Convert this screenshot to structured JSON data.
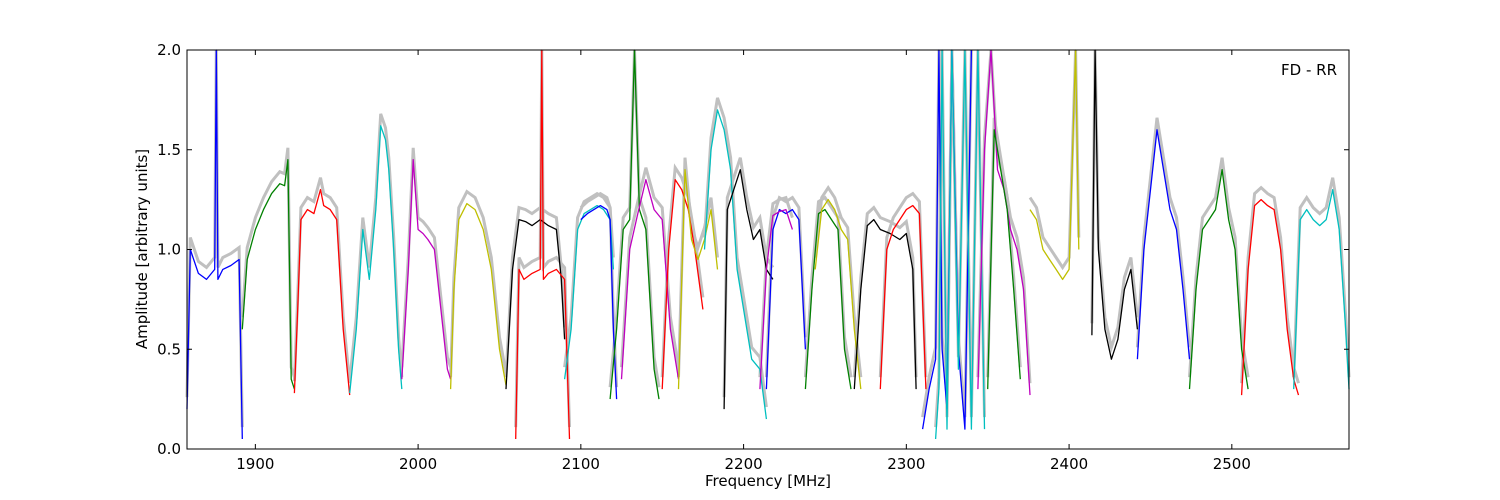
{
  "chart_data": {
    "type": "line",
    "annotation": "FD - RR",
    "xlabel": "Frequency [MHz]",
    "ylabel": "Amplitude [arbitrary units]",
    "xlim": [
      1858,
      2572
    ],
    "ylim": [
      0.0,
      2.0
    ],
    "xticks": [
      1900,
      2000,
      2100,
      2200,
      2300,
      2400,
      2500
    ],
    "yticks": [
      0.0,
      0.5,
      1.0,
      1.5,
      2.0
    ],
    "xtick_labels": [
      "1900",
      "2000",
      "2100",
      "2200",
      "2300",
      "2400",
      "2500"
    ],
    "ytick_labels": [
      "0.0",
      "0.5",
      "1.0",
      "1.5",
      "2.0"
    ],
    "grid": false,
    "background_color": "#c0c0c0",
    "series": [
      {
        "color": "#0000ff",
        "x": [
          1858,
          1860,
          1865,
          1870,
          1875,
          1876,
          1877,
          1880,
          1885,
          1890,
          1892
        ],
        "y": [
          0.2,
          1.0,
          0.88,
          0.85,
          0.9,
          2.0,
          0.85,
          0.9,
          0.92,
          0.95,
          0.05
        ]
      },
      {
        "color": "#008000",
        "x": [
          1892,
          1895,
          1900,
          1905,
          1910,
          1915,
          1918,
          1920,
          1922,
          1924
        ],
        "y": [
          0.6,
          0.95,
          1.1,
          1.2,
          1.28,
          1.33,
          1.32,
          1.45,
          0.35,
          0.3
        ]
      },
      {
        "color": "#ff0000",
        "x": [
          1924,
          1926,
          1928,
          1932,
          1936,
          1940,
          1942,
          1946,
          1950,
          1954,
          1958
        ],
        "y": [
          0.28,
          0.7,
          1.15,
          1.2,
          1.18,
          1.3,
          1.22,
          1.2,
          1.15,
          0.6,
          0.27
        ]
      },
      {
        "color": "#00bfbf",
        "x": [
          1958,
          1962,
          1966,
          1970,
          1974,
          1977,
          1980,
          1982,
          1985,
          1988,
          1990
        ],
        "y": [
          0.28,
          0.6,
          1.1,
          0.85,
          1.2,
          1.62,
          1.55,
          1.4,
          1.0,
          0.5,
          0.3
        ]
      },
      {
        "color": "#bf00bf",
        "x": [
          1990,
          1994,
          1997,
          2000,
          2003,
          2006,
          2010,
          2014,
          2018,
          2020
        ],
        "y": [
          0.35,
          0.9,
          1.45,
          1.1,
          1.08,
          1.05,
          1.0,
          0.7,
          0.4,
          0.35
        ]
      },
      {
        "color": "#bfbf00",
        "x": [
          2020,
          2022,
          2025,
          2030,
          2035,
          2040,
          2045,
          2050,
          2054
        ],
        "y": [
          0.3,
          0.8,
          1.15,
          1.23,
          1.2,
          1.1,
          0.9,
          0.5,
          0.32
        ]
      },
      {
        "color": "#000000",
        "x": [
          2054,
          2058,
          2062,
          2066,
          2070,
          2075,
          2080,
          2085,
          2088,
          2090
        ],
        "y": [
          0.3,
          0.9,
          1.15,
          1.14,
          1.12,
          1.15,
          1.12,
          1.1,
          0.85,
          0.55
        ]
      },
      {
        "color": "#ff0000",
        "x": [
          2060,
          2062,
          2065,
          2070,
          2075,
          2076,
          2077,
          2080,
          2085,
          2090,
          2093
        ],
        "y": [
          0.05,
          0.9,
          0.85,
          0.88,
          0.9,
          2.0,
          0.85,
          0.88,
          0.9,
          0.85,
          0.05
        ]
      },
      {
        "color": "#00bfbf",
        "x": [
          2090,
          2094,
          2098,
          2102,
          2106,
          2110,
          2114,
          2118,
          2120
        ],
        "y": [
          0.35,
          0.6,
          1.1,
          1.18,
          1.2,
          1.22,
          1.2,
          1.15,
          0.9
        ]
      },
      {
        "color": "#0000ff",
        "x": [
          2100,
          2104,
          2108,
          2112,
          2116,
          2118,
          2120,
          2122
        ],
        "y": [
          1.15,
          1.18,
          1.2,
          1.22,
          1.2,
          1.15,
          0.6,
          0.25
        ]
      },
      {
        "color": "#008000",
        "x": [
          2118,
          2122,
          2126,
          2130,
          2133,
          2136,
          2140,
          2145,
          2148
        ],
        "y": [
          0.25,
          0.6,
          1.1,
          1.15,
          2.0,
          1.2,
          1.1,
          0.4,
          0.25
        ]
      },
      {
        "color": "#bf00bf",
        "x": [
          2125,
          2130,
          2135,
          2140,
          2145,
          2150,
          2155,
          2160
        ],
        "y": [
          0.35,
          1.0,
          1.18,
          1.35,
          1.2,
          1.15,
          0.6,
          0.35
        ]
      },
      {
        "color": "#ff0000",
        "x": [
          2150,
          2154,
          2158,
          2162,
          2166,
          2170,
          2175
        ],
        "y": [
          0.3,
          1.0,
          1.35,
          1.3,
          1.2,
          1.0,
          0.7
        ]
      },
      {
        "color": "#bfbf00",
        "x": [
          2160,
          2164,
          2168,
          2172,
          2176,
          2180,
          2184
        ],
        "y": [
          0.3,
          1.4,
          1.05,
          0.95,
          1.05,
          1.2,
          0.9
        ]
      },
      {
        "color": "#00bfbf",
        "x": [
          2176,
          2180,
          2184,
          2188,
          2192,
          2196,
          2200,
          2205,
          2210,
          2214
        ],
        "y": [
          1.0,
          1.5,
          1.7,
          1.6,
          1.4,
          0.9,
          0.7,
          0.45,
          0.4,
          0.15
        ]
      },
      {
        "color": "#000000",
        "x": [
          2188,
          2190,
          2194,
          2198,
          2202,
          2206,
          2210,
          2214,
          2218
        ],
        "y": [
          0.2,
          1.2,
          1.3,
          1.4,
          1.2,
          1.05,
          1.1,
          0.9,
          0.85
        ]
      },
      {
        "color": "#0000ff",
        "x": [
          2214,
          2218,
          2222,
          2226,
          2230,
          2234,
          2238
        ],
        "y": [
          0.3,
          1.1,
          1.2,
          1.18,
          1.2,
          1.15,
          0.5
        ]
      },
      {
        "color": "#bf00bf",
        "x": [
          2210,
          2214,
          2218,
          2222,
          2226,
          2230
        ],
        "y": [
          0.3,
          0.9,
          1.17,
          1.19,
          1.2,
          1.1
        ]
      },
      {
        "color": "#008000",
        "x": [
          2238,
          2242,
          2246,
          2250,
          2254,
          2258,
          2262,
          2266
        ],
        "y": [
          0.3,
          0.8,
          1.18,
          1.2,
          1.15,
          1.1,
          0.5,
          0.3
        ]
      },
      {
        "color": "#bfbf00",
        "x": [
          2244,
          2248,
          2252,
          2256,
          2260,
          2264,
          2268,
          2272
        ],
        "y": [
          0.9,
          1.2,
          1.25,
          1.2,
          1.1,
          1.05,
          0.6,
          0.3
        ]
      },
      {
        "color": "#000000",
        "x": [
          2268,
          2272,
          2276,
          2280,
          2284,
          2290,
          2296,
          2300,
          2304,
          2306
        ],
        "y": [
          0.3,
          0.8,
          1.12,
          1.15,
          1.1,
          1.08,
          1.05,
          1.08,
          0.9,
          0.3
        ]
      },
      {
        "color": "#ff0000",
        "x": [
          2284,
          2288,
          2292,
          2296,
          2300,
          2304,
          2308,
          2312
        ],
        "y": [
          0.3,
          1.0,
          1.1,
          1.15,
          1.2,
          1.22,
          1.18,
          0.3
        ]
      },
      {
        "color": "#0000ff",
        "x": [
          2310,
          2314,
          2318,
          2320,
          2322,
          2325,
          2328,
          2332,
          2336,
          2340
        ],
        "y": [
          0.1,
          0.3,
          0.45,
          2.0,
          0.5,
          0.2,
          2.0,
          0.5,
          0.1,
          2.0
        ]
      },
      {
        "color": "#00bfbf",
        "x": [
          2318,
          2320,
          2322,
          2325,
          2328,
          2332,
          2336,
          2340,
          2344,
          2348
        ],
        "y": [
          0.05,
          0.3,
          2.0,
          0.1,
          2.0,
          0.4,
          2.0,
          0.1,
          2.0,
          0.1
        ]
      },
      {
        "color": "#bf00bf",
        "x": [
          2344,
          2348,
          2352,
          2356,
          2360,
          2364,
          2368,
          2372,
          2376
        ],
        "y": [
          0.3,
          1.5,
          2.0,
          1.4,
          1.3,
          1.1,
          1.0,
          0.8,
          0.27
        ]
      },
      {
        "color": "#008000",
        "x": [
          2350,
          2354,
          2358,
          2362,
          2366,
          2370
        ],
        "y": [
          0.3,
          1.6,
          1.4,
          1.2,
          0.8,
          0.35
        ]
      },
      {
        "color": "#bfbf00",
        "x": [
          2376,
          2380,
          2384,
          2388,
          2392,
          2396,
          2400,
          2404,
          2406
        ],
        "y": [
          1.2,
          1.15,
          1.0,
          0.95,
          0.9,
          0.85,
          0.9,
          2.0,
          1.0
        ]
      },
      {
        "color": "#000000",
        "x": [
          2414,
          2416,
          2418,
          2422,
          2426,
          2430,
          2434,
          2438,
          2442
        ],
        "y": [
          0.57,
          2.0,
          1.0,
          0.6,
          0.45,
          0.55,
          0.8,
          0.9,
          0.6
        ]
      },
      {
        "color": "#0000ff",
        "x": [
          2442,
          2446,
          2450,
          2454,
          2458,
          2462,
          2466,
          2470,
          2474
        ],
        "y": [
          0.45,
          1.0,
          1.3,
          1.6,
          1.4,
          1.2,
          1.1,
          0.8,
          0.45
        ]
      },
      {
        "color": "#008000",
        "x": [
          2474,
          2478,
          2482,
          2486,
          2490,
          2494,
          2498,
          2502,
          2506,
          2510
        ],
        "y": [
          0.3,
          0.8,
          1.1,
          1.15,
          1.2,
          1.4,
          1.15,
          1.0,
          0.5,
          0.3
        ]
      },
      {
        "color": "#ff0000",
        "x": [
          2506,
          2510,
          2514,
          2518,
          2522,
          2526,
          2530,
          2534,
          2538,
          2541
        ],
        "y": [
          0.27,
          0.9,
          1.22,
          1.25,
          1.22,
          1.2,
          1.0,
          0.6,
          0.35,
          0.27
        ]
      },
      {
        "color": "#00bfbf",
        "x": [
          2538,
          2542,
          2546,
          2550,
          2554,
          2558,
          2562,
          2566,
          2570,
          2572
        ],
        "y": [
          0.3,
          1.15,
          1.2,
          1.15,
          1.12,
          1.15,
          1.3,
          1.1,
          0.6,
          0.3
        ]
      }
    ]
  }
}
